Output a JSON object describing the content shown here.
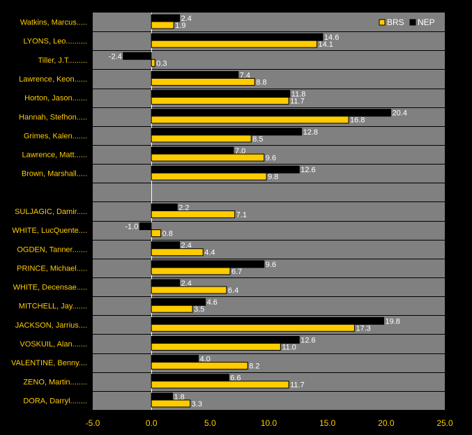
{
  "chart_data": {
    "type": "bar",
    "orientation": "horizontal",
    "categories": [
      "Watkins, Marcus.....",
      "LYONS, Leo..........",
      "Tiller, J.T.........",
      "Lawrence, Keon......",
      "Horton, Jason.......",
      "Hannah, Stefhon.....",
      "Grimes, Kalen.......",
      "Lawrence, Matt......",
      "Brown, Marshall.....",
      "",
      "SULJAGIC, Damir.....",
      "WHITE, LucQuente....",
      "OGDEN, Tanner.......",
      "PRINCE, Michael.....",
      "WHITE, Decensae.....",
      "MITCHELL, Jay.......",
      "JACKSON, Jarrius....",
      "VOSKUIL, Alan.......",
      "VALENTINE, Benny....",
      "ZENO, Martin........",
      "DORA, Darryl........"
    ],
    "series": [
      {
        "name": "NEP",
        "color": "#000000",
        "values": [
          2.4,
          14.6,
          -2.4,
          7.4,
          11.8,
          20.4,
          12.8,
          7.0,
          12.6,
          null,
          2.2,
          -1.0,
          2.4,
          9.6,
          2.4,
          4.6,
          19.8,
          12.6,
          4.0,
          6.6,
          1.8
        ]
      },
      {
        "name": "BRS",
        "color": "#FFCC00",
        "values": [
          1.9,
          14.1,
          0.3,
          8.8,
          11.7,
          16.8,
          8.5,
          9.6,
          9.8,
          null,
          7.1,
          0.8,
          4.4,
          6.7,
          6.4,
          3.5,
          17.3,
          11.0,
          8.2,
          11.7,
          3.3
        ]
      }
    ],
    "xlim": [
      -5.0,
      25.0
    ],
    "xticks": [
      "-5.0",
      "0.0",
      "5.0",
      "10.0",
      "15.0",
      "20.0",
      "25.0"
    ],
    "legend": {
      "placement": "top-right",
      "entries": [
        "BRS",
        "NEP"
      ]
    },
    "grid": true,
    "colors": {
      "background": "#000000",
      "plot_area": "#808080",
      "grid": "#000000",
      "zero_line": "#FFFFFF",
      "label_text": "#FFCC00",
      "value_text": "#FFFFFF"
    }
  }
}
